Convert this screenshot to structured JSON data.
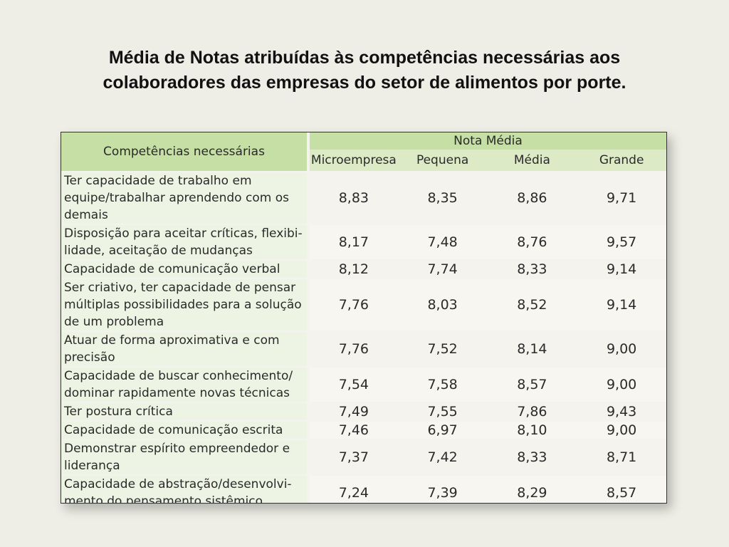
{
  "title_line1": "Média de Notas atribuídas às competências necessárias aos",
  "title_line2": "colaboradores das empresas do setor de alimentos por porte.",
  "table": {
    "col_competencias": "Competências necessárias",
    "group_header": "Nota Média",
    "sub_headers": [
      "Microempresa",
      "Pequena",
      "Média",
      "Grande"
    ],
    "rows": [
      {
        "label": "Ter capacidade de trabalho em equipe/trabalhar aprendendo com os demais",
        "values": [
          "8,83",
          "8,35",
          "8,86",
          "9,71"
        ]
      },
      {
        "label": "Disposição para aceitar críticas, flexibi-lidade, aceitação de mudanças",
        "values": [
          "8,17",
          "7,48",
          "8,76",
          "9,57"
        ]
      },
      {
        "label": "Capacidade de comunicação verbal",
        "values": [
          "8,12",
          "7,74",
          "8,33",
          "9,14"
        ]
      },
      {
        "label": "Ser criativo, ter capacidade de pensar múltiplas possibilidades para a solução de um problema",
        "values": [
          "7,76",
          "8,03",
          "8,52",
          "9,14"
        ]
      },
      {
        "label": "Atuar de forma aproximativa e com precisão",
        "values": [
          "7,76",
          "7,52",
          "8,14",
          "9,00"
        ]
      },
      {
        "label": "Capacidade de buscar conhecimento/ dominar rapidamente novas técnicas",
        "values": [
          "7,54",
          "7,58",
          "8,57",
          "9,00"
        ]
      },
      {
        "label": "Ter postura crítica",
        "values": [
          "7,49",
          "7,55",
          "7,86",
          "9,43"
        ]
      },
      {
        "label": "Capacidade de comunicação escrita",
        "values": [
          "7,46",
          "6,97",
          "8,10",
          "9,00"
        ]
      },
      {
        "label": "Demonstrar espírito empreendedor e liderança",
        "values": [
          "7,37",
          "7,42",
          "8,33",
          "8,71"
        ]
      },
      {
        "label": "Capacidade de abstração/desenvolvi-mento do pensamento sistêmico",
        "values": [
          "7,24",
          "7,39",
          "8,29",
          "8,57"
        ]
      }
    ]
  }
}
